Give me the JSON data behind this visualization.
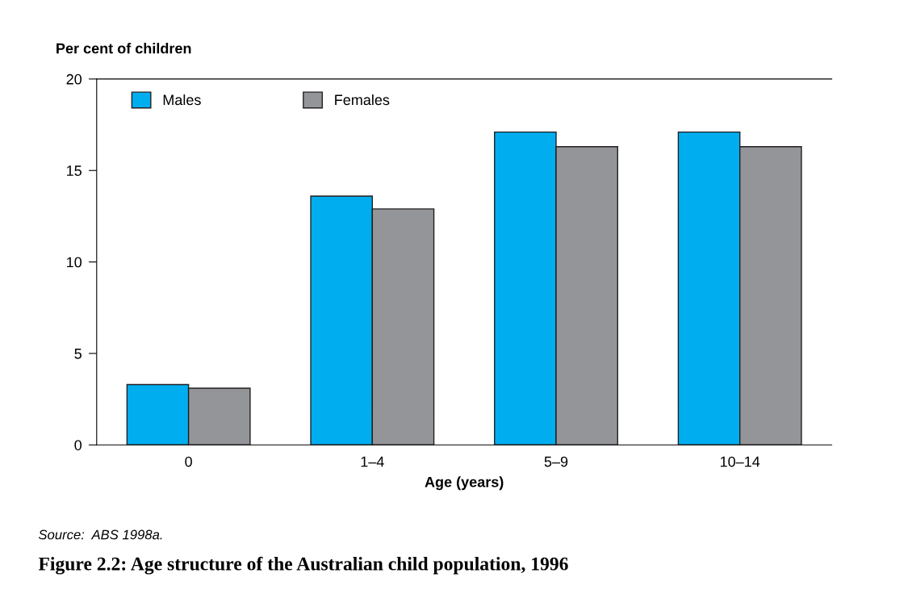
{
  "chart_data": {
    "type": "bar",
    "title": "Figure 2.2: Age structure of the Australian child population, 1996",
    "ylabel": "Per cent of children",
    "xlabel": "Age (years)",
    "categories": [
      "0",
      "1–4",
      "5–9",
      "10–14"
    ],
    "series": [
      {
        "name": "Males",
        "color": "#00aeef",
        "values": [
          3.3,
          13.6,
          17.1,
          17.1
        ]
      },
      {
        "name": "Females",
        "color": "#939598",
        "values": [
          3.1,
          12.9,
          16.3,
          16.3
        ]
      }
    ],
    "ylim": [
      0,
      20
    ],
    "yticks": [
      0,
      5,
      10,
      15,
      20
    ],
    "grid": false,
    "legend": "top left",
    "annotations": [
      "Source:  ABS 1998a."
    ]
  }
}
